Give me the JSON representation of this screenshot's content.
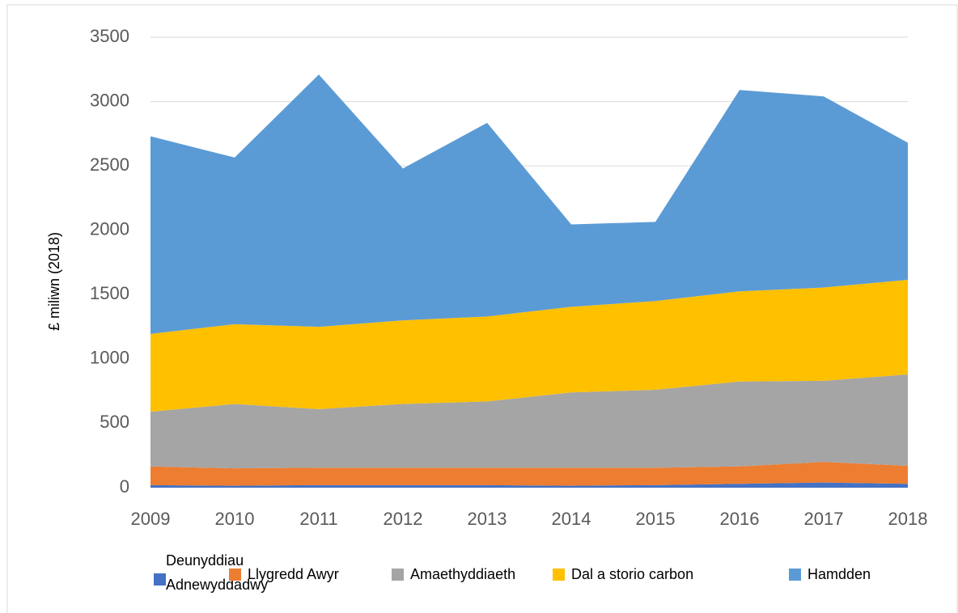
{
  "chart_data": {
    "type": "stacked_area",
    "y_label": "£ miliwn (2018)",
    "categories": [
      "2009",
      "2010",
      "2011",
      "2012",
      "2013",
      "2014",
      "2015",
      "2016",
      "2017",
      "2018"
    ],
    "series": [
      {
        "name": "Deunyddiau Adnewyddadwy",
        "color": "#4472c4",
        "values": [
          20,
          15,
          20,
          20,
          20,
          15,
          20,
          30,
          40,
          30
        ]
      },
      {
        "name": "Llygredd Awyr",
        "color": "#ed7d31",
        "values": [
          145,
          135,
          135,
          135,
          135,
          140,
          135,
          135,
          160,
          140
        ]
      },
      {
        "name": "Amaethyddiaeth",
        "color": "#a5a5a5",
        "values": [
          425,
          500,
          455,
          495,
          515,
          585,
          605,
          660,
          630,
          710
        ]
      },
      {
        "name": "Dal a storio carbon",
        "color": "#ffc000",
        "values": [
          605,
          620,
          640,
          650,
          660,
          665,
          690,
          700,
          725,
          735
        ]
      },
      {
        "name": "Hamdden",
        "color": "#5b9bd5",
        "values": [
          1535,
          1295,
          1960,
          1180,
          1505,
          640,
          615,
          1565,
          1485,
          1065
        ]
      }
    ],
    "ylim": [
      0,
      3500
    ],
    "yticks": [
      0,
      500,
      1000,
      1500,
      2000,
      2500,
      3000,
      3500
    ],
    "grid": true
  }
}
